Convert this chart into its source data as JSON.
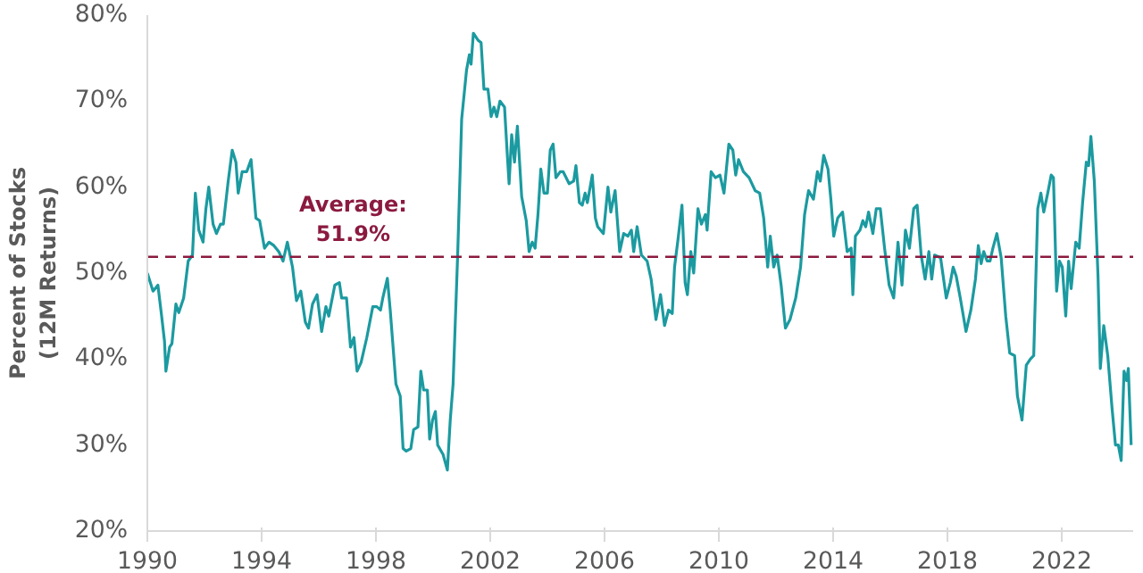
{
  "chart_data": {
    "type": "line",
    "ylabel": "Percent of Stocks\n(12M Returns)",
    "xlim": [
      1990,
      2024.5
    ],
    "xticks": [
      1990,
      1994,
      1998,
      2002,
      2006,
      2010,
      2014,
      2018,
      2022
    ],
    "ylim": [
      20,
      80
    ],
    "yticks": [
      {
        "value": 20,
        "label": "20%"
      },
      {
        "value": 30,
        "label": "30%"
      },
      {
        "value": 40,
        "label": "40%"
      },
      {
        "value": 50,
        "label": "50%"
      },
      {
        "value": 60,
        "label": "60%"
      },
      {
        "value": 70,
        "label": "70%"
      },
      {
        "value": 80,
        "label": "80%"
      }
    ],
    "grid": false,
    "marker": "none",
    "line_style": "solid",
    "ref_lines": [
      {
        "axis": "y",
        "value": 51.9,
        "label": "Average:\n51.9%",
        "color": "#8b1a3f",
        "line_style": "dashed"
      }
    ],
    "series": [
      {
        "color": "#1b9aa0",
        "x": [
          1990.0,
          1990.2,
          1990.37,
          1990.5,
          1990.6,
          1990.65,
          1990.78,
          1990.86,
          1991.0,
          1991.1,
          1991.27,
          1991.43,
          1991.58,
          1991.68,
          1991.8,
          1991.95,
          1992.05,
          1992.15,
          1992.3,
          1992.42,
          1992.56,
          1992.66,
          1992.83,
          1992.97,
          1993.1,
          1993.18,
          1993.32,
          1993.48,
          1993.63,
          1993.8,
          1993.93,
          1994.1,
          1994.26,
          1994.43,
          1994.6,
          1994.75,
          1994.9,
          1995.08,
          1995.22,
          1995.37,
          1995.53,
          1995.64,
          1995.78,
          1995.94,
          1996.1,
          1996.25,
          1996.35,
          1996.56,
          1996.72,
          1996.8,
          1996.97,
          1997.11,
          1997.23,
          1997.34,
          1997.48,
          1997.68,
          1997.89,
          1998.03,
          1998.16,
          1998.24,
          1998.4,
          1998.5,
          1998.7,
          1998.85,
          1998.95,
          1999.06,
          1999.22,
          1999.32,
          1999.47,
          1999.57,
          1999.67,
          1999.8,
          1999.88,
          1999.98,
          2000.08,
          2000.16,
          2000.35,
          2000.5,
          2000.6,
          2000.7,
          2000.86,
          2001.0,
          2001.17,
          2001.27,
          2001.33,
          2001.41,
          2001.57,
          2001.68,
          2001.78,
          2001.92,
          2002.03,
          2002.13,
          2002.23,
          2002.34,
          2002.5,
          2002.6,
          2002.66,
          2002.75,
          2002.85,
          2002.95,
          2003.1,
          2003.26,
          2003.36,
          2003.47,
          2003.57,
          2003.67,
          2003.77,
          2003.88,
          2004.0,
          2004.1,
          2004.2,
          2004.3,
          2004.45,
          2004.55,
          2004.76,
          2004.92,
          2005.0,
          2005.12,
          2005.22,
          2005.32,
          2005.4,
          2005.57,
          2005.68,
          2005.76,
          2005.96,
          2006.12,
          2006.22,
          2006.37,
          2006.53,
          2006.67,
          2006.82,
          2006.94,
          2007.02,
          2007.14,
          2007.29,
          2007.49,
          2007.63,
          2007.8,
          2007.96,
          2008.1,
          2008.24,
          2008.37,
          2008.45,
          2008.57,
          2008.71,
          2008.82,
          2008.9,
          2009.02,
          2009.12,
          2009.27,
          2009.39,
          2009.53,
          2009.59,
          2009.73,
          2009.88,
          2010.04,
          2010.18,
          2010.35,
          2010.49,
          2010.59,
          2010.69,
          2010.86,
          2011.06,
          2011.27,
          2011.43,
          2011.57,
          2011.71,
          2011.8,
          2011.92,
          2012.04,
          2012.18,
          2012.33,
          2012.49,
          2012.69,
          2012.86,
          2013.0,
          2013.14,
          2013.31,
          2013.45,
          2013.55,
          2013.67,
          2013.82,
          2013.92,
          2014.02,
          2014.16,
          2014.33,
          2014.49,
          2014.63,
          2014.69,
          2014.78,
          2014.94,
          2015.04,
          2015.14,
          2015.24,
          2015.39,
          2015.51,
          2015.65,
          2015.8,
          2015.96,
          2016.12,
          2016.27,
          2016.41,
          2016.53,
          2016.67,
          2016.82,
          2016.94,
          2017.08,
          2017.22,
          2017.35,
          2017.45,
          2017.55,
          2017.76,
          2017.96,
          2018.1,
          2018.2,
          2018.31,
          2018.45,
          2018.65,
          2018.82,
          2018.98,
          2019.08,
          2019.18,
          2019.27,
          2019.39,
          2019.49,
          2019.59,
          2019.73,
          2019.88,
          2020.04,
          2020.18,
          2020.35,
          2020.45,
          2020.61,
          2020.76,
          2020.9,
          2021.02,
          2021.16,
          2021.27,
          2021.37,
          2021.51,
          2021.63,
          2021.71,
          2021.82,
          2021.92,
          2022.02,
          2022.14,
          2022.24,
          2022.33,
          2022.49,
          2022.61,
          2022.73,
          2022.86,
          2022.94,
          2023.02,
          2023.14,
          2023.27,
          2023.35,
          2023.47,
          2023.61,
          2023.76,
          2023.88,
          2023.98,
          2024.08,
          2024.18,
          2024.27,
          2024.33,
          2024.43
        ],
        "values": [
          50,
          47.9,
          48.6,
          45,
          42.1,
          38.6,
          41.4,
          41.8,
          46.4,
          45.4,
          47.1,
          51.4,
          52.1,
          59.3,
          55,
          53.6,
          57.5,
          60,
          55.7,
          54.6,
          55.7,
          55.7,
          60.7,
          64.3,
          62.9,
          59.3,
          61.8,
          61.8,
          63.2,
          56.4,
          56.1,
          52.9,
          53.6,
          53.2,
          52.5,
          51.4,
          53.6,
          50.7,
          46.8,
          47.9,
          44.3,
          43.6,
          46.4,
          47.5,
          43.2,
          46.1,
          45,
          48.6,
          48.9,
          47.1,
          47.1,
          41.4,
          42.5,
          38.6,
          39.6,
          42.5,
          46.1,
          46.1,
          45.7,
          47.1,
          49.4,
          45.7,
          37.1,
          35.7,
          29.6,
          29.3,
          29.6,
          31.8,
          32.1,
          38.6,
          36.4,
          36.4,
          30.7,
          32.9,
          33.9,
          30,
          28.9,
          27.1,
          32.9,
          37.1,
          52.1,
          67.9,
          73.6,
          75.4,
          74.3,
          77.9,
          77.1,
          76.8,
          71.4,
          71.4,
          68.2,
          69.3,
          68.2,
          70,
          69.3,
          63.6,
          60.4,
          66.1,
          62.9,
          67.1,
          58.9,
          56.1,
          52.5,
          53.6,
          52.9,
          56.8,
          62.1,
          59.3,
          59.3,
          64.3,
          65,
          61.1,
          61.8,
          61.8,
          60.4,
          60.7,
          62.5,
          58.2,
          57.9,
          59.3,
          58.2,
          61.4,
          56.4,
          55.4,
          54.6,
          60,
          57.1,
          59.6,
          52.5,
          54.6,
          54.3,
          55,
          52.5,
          55.4,
          52.1,
          51.4,
          49.3,
          44.6,
          47.5,
          43.9,
          45.7,
          45.3,
          50.7,
          53.9,
          57.9,
          48.9,
          47.5,
          52.5,
          50,
          57.5,
          55.7,
          56.8,
          55,
          61.8,
          61.1,
          61.4,
          59.3,
          65,
          64.3,
          61.4,
          63.2,
          61.8,
          61.1,
          59.6,
          59.3,
          56.4,
          50.7,
          54.3,
          50.7,
          52.1,
          48.6,
          43.6,
          44.6,
          47.1,
          50.7,
          56.8,
          59.6,
          58.6,
          61.8,
          60.7,
          63.7,
          62.1,
          58.6,
          54.3,
          56.4,
          57.1,
          52.5,
          52.9,
          47.5,
          54.3,
          55,
          56.1,
          55.4,
          57.1,
          54.6,
          57.5,
          57.5,
          52.9,
          48.6,
          47.1,
          53.6,
          48.6,
          55,
          52.9,
          57.5,
          57.9,
          52.1,
          49.3,
          52.5,
          49.3,
          52.1,
          51.8,
          47.1,
          48.9,
          50.7,
          49.6,
          47.1,
          43.2,
          45.7,
          49.3,
          53.2,
          51.1,
          52.5,
          51.4,
          51.4,
          52.9,
          54.6,
          51.8,
          45,
          40.7,
          40.4,
          35.7,
          32.9,
          39.3,
          40,
          40.4,
          57.5,
          59.3,
          57.1,
          59.3,
          61.4,
          61.1,
          47.9,
          51.4,
          50.7,
          45,
          51.4,
          48.2,
          53.6,
          52.9,
          58.2,
          62.9,
          62.5,
          65.9,
          60.7,
          49.6,
          38.9,
          43.9,
          40.4,
          34.3,
          30,
          30,
          28.2,
          38.6,
          37.5,
          38.9,
          30
        ]
      }
    ]
  }
}
